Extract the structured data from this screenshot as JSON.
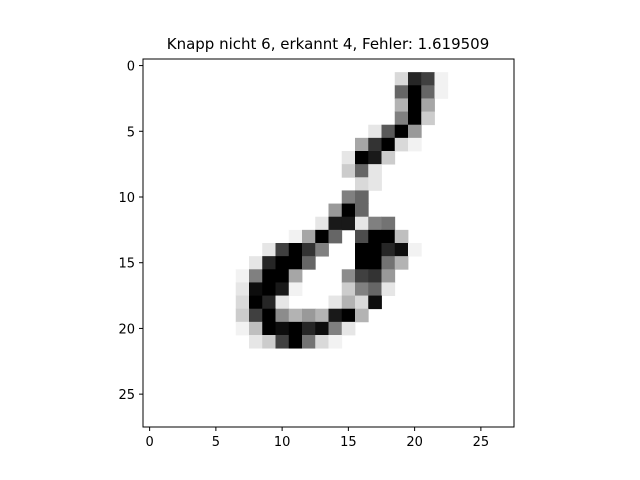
{
  "chart_data": {
    "type": "heatmap",
    "title": "Knapp nicht 6, erkannt 4, Fehler: 1.619509",
    "colormap": "gray_r",
    "value_range": [
      0,
      1
    ],
    "rows": 28,
    "cols": 28,
    "xlim": [
      -0.5,
      27.5
    ],
    "ylim": [
      27.5,
      -0.5
    ],
    "x_ticks": [
      0,
      5,
      10,
      15,
      20,
      25
    ],
    "y_ticks": [
      0,
      5,
      10,
      15,
      20,
      25
    ],
    "x_tick_labels": [
      "0",
      "5",
      "10",
      "15",
      "20",
      "25"
    ],
    "y_tick_labels": [
      "0",
      "5",
      "10",
      "15",
      "20",
      "25"
    ],
    "pixels": [
      [
        1,
        19,
        0.15
      ],
      [
        1,
        20,
        0.85
      ],
      [
        1,
        21,
        0.75
      ],
      [
        1,
        22,
        0.05
      ],
      [
        2,
        19,
        0.6
      ],
      [
        2,
        20,
        1.0
      ],
      [
        2,
        21,
        0.6
      ],
      [
        2,
        22,
        0.05
      ],
      [
        3,
        19,
        0.3
      ],
      [
        3,
        20,
        1.0
      ],
      [
        3,
        21,
        0.35
      ],
      [
        4,
        19,
        0.5
      ],
      [
        4,
        20,
        1.0
      ],
      [
        4,
        21,
        0.2
      ],
      [
        5,
        17,
        0.1
      ],
      [
        5,
        18,
        0.65
      ],
      [
        5,
        19,
        1.0
      ],
      [
        5,
        20,
        0.4
      ],
      [
        6,
        16,
        0.35
      ],
      [
        6,
        17,
        0.8
      ],
      [
        6,
        18,
        1.0
      ],
      [
        6,
        19,
        0.15
      ],
      [
        6,
        20,
        0.05
      ],
      [
        7,
        15,
        0.1
      ],
      [
        7,
        16,
        1.0
      ],
      [
        7,
        17,
        0.9
      ],
      [
        7,
        18,
        0.2
      ],
      [
        8,
        15,
        0.2
      ],
      [
        8,
        16,
        0.6
      ],
      [
        8,
        17,
        0.1
      ],
      [
        9,
        16,
        0.15
      ],
      [
        9,
        17,
        0.1
      ],
      [
        10,
        15,
        0.5
      ],
      [
        10,
        16,
        0.6
      ],
      [
        11,
        14,
        0.4
      ],
      [
        11,
        15,
        1.0
      ],
      [
        11,
        16,
        0.6
      ],
      [
        12,
        13,
        0.1
      ],
      [
        12,
        14,
        0.9
      ],
      [
        12,
        15,
        0.9
      ],
      [
        12,
        16,
        0.1
      ],
      [
        12,
        17,
        0.5
      ],
      [
        12,
        18,
        0.55
      ],
      [
        13,
        11,
        0.05
      ],
      [
        13,
        12,
        0.35
      ],
      [
        13,
        13,
        1.0
      ],
      [
        13,
        14,
        0.6
      ],
      [
        13,
        16,
        0.7
      ],
      [
        13,
        17,
        1.0
      ],
      [
        13,
        18,
        1.0
      ],
      [
        13,
        19,
        0.25
      ],
      [
        14,
        9,
        0.1
      ],
      [
        14,
        10,
        0.75
      ],
      [
        14,
        11,
        1.0
      ],
      [
        14,
        12,
        0.8
      ],
      [
        14,
        13,
        0.5
      ],
      [
        14,
        16,
        1.0
      ],
      [
        14,
        17,
        1.0
      ],
      [
        14,
        18,
        0.85
      ],
      [
        14,
        19,
        0.95
      ],
      [
        14,
        20,
        0.05
      ],
      [
        15,
        8,
        0.1
      ],
      [
        15,
        9,
        0.85
      ],
      [
        15,
        10,
        1.0
      ],
      [
        15,
        11,
        1.0
      ],
      [
        15,
        12,
        0.6
      ],
      [
        15,
        16,
        1.0
      ],
      [
        15,
        17,
        1.0
      ],
      [
        15,
        18,
        0.55
      ],
      [
        15,
        19,
        0.3
      ],
      [
        16,
        7,
        0.05
      ],
      [
        16,
        8,
        0.5
      ],
      [
        16,
        9,
        1.0
      ],
      [
        16,
        10,
        1.0
      ],
      [
        16,
        11,
        0.35
      ],
      [
        16,
        15,
        0.45
      ],
      [
        16,
        16,
        0.75
      ],
      [
        16,
        17,
        0.8
      ],
      [
        16,
        18,
        0.4
      ],
      [
        17,
        7,
        0.1
      ],
      [
        17,
        8,
        0.95
      ],
      [
        17,
        9,
        1.0
      ],
      [
        17,
        10,
        0.9
      ],
      [
        17,
        11,
        0.05
      ],
      [
        17,
        15,
        0.2
      ],
      [
        17,
        16,
        0.5
      ],
      [
        17,
        17,
        0.6
      ],
      [
        17,
        18,
        0.1
      ],
      [
        18,
        7,
        0.15
      ],
      [
        18,
        8,
        1.0
      ],
      [
        18,
        9,
        0.85
      ],
      [
        18,
        10,
        0.1
      ],
      [
        18,
        14,
        0.1
      ],
      [
        18,
        15,
        0.3
      ],
      [
        18,
        16,
        0.15
      ],
      [
        18,
        17,
        0.95
      ],
      [
        19,
        7,
        0.2
      ],
      [
        19,
        8,
        0.75
      ],
      [
        19,
        9,
        1.0
      ],
      [
        19,
        10,
        0.45
      ],
      [
        19,
        11,
        0.3
      ],
      [
        19,
        12,
        0.4
      ],
      [
        19,
        13,
        0.3
      ],
      [
        19,
        14,
        0.9
      ],
      [
        19,
        15,
        1.0
      ],
      [
        19,
        16,
        0.3
      ],
      [
        20,
        7,
        0.05
      ],
      [
        20,
        8,
        0.25
      ],
      [
        20,
        9,
        1.0
      ],
      [
        20,
        10,
        0.95
      ],
      [
        20,
        11,
        1.0
      ],
      [
        20,
        12,
        0.85
      ],
      [
        20,
        13,
        0.95
      ],
      [
        20,
        14,
        0.5
      ],
      [
        20,
        15,
        0.1
      ],
      [
        21,
        8,
        0.1
      ],
      [
        21,
        9,
        0.2
      ],
      [
        21,
        10,
        0.75
      ],
      [
        21,
        11,
        1.0
      ],
      [
        21,
        12,
        0.55
      ],
      [
        21,
        13,
        0.15
      ],
      [
        21,
        14,
        0.05
      ]
    ]
  }
}
